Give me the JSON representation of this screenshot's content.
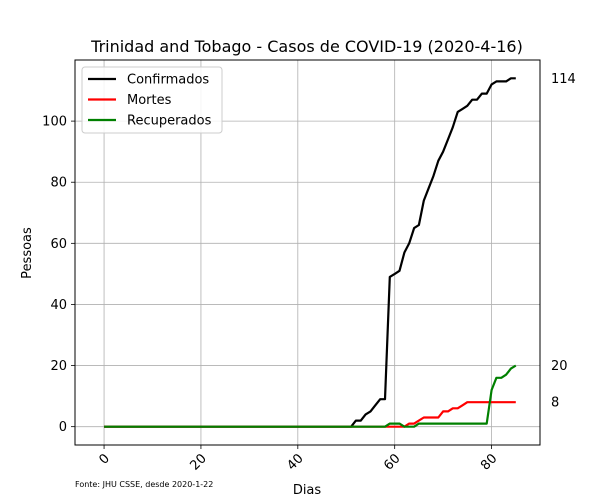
{
  "chart_data": {
    "type": "line",
    "title": "Trinidad and Tobago - Casos de COVID-19 (2020-4-16)",
    "xlabel": "Dias",
    "ylabel": "Pessoas",
    "xlim": [
      -6,
      90
    ],
    "ylim": [
      -6,
      120
    ],
    "xticks": [
      0,
      20,
      40,
      60,
      80
    ],
    "yticks": [
      0,
      20,
      40,
      60,
      80,
      100
    ],
    "grid": true,
    "legend_position": "top-left",
    "series": [
      {
        "name": "Confirmados",
        "color": "#000000",
        "end_label": "114",
        "points": [
          [
            0,
            0
          ],
          [
            51,
            0
          ],
          [
            52,
            2
          ],
          [
            53,
            2
          ],
          [
            54,
            4
          ],
          [
            55,
            5
          ],
          [
            56,
            7
          ],
          [
            57,
            9
          ],
          [
            58,
            9
          ],
          [
            59,
            49
          ],
          [
            60,
            50
          ],
          [
            61,
            51
          ],
          [
            62,
            57
          ],
          [
            63,
            60
          ],
          [
            64,
            65
          ],
          [
            65,
            66
          ],
          [
            66,
            74
          ],
          [
            67,
            78
          ],
          [
            68,
            82
          ],
          [
            69,
            87
          ],
          [
            70,
            90
          ],
          [
            71,
            94
          ],
          [
            72,
            98
          ],
          [
            73,
            103
          ],
          [
            74,
            104
          ],
          [
            75,
            105
          ],
          [
            76,
            107
          ],
          [
            77,
            107
          ],
          [
            78,
            109
          ],
          [
            79,
            109
          ],
          [
            80,
            112
          ],
          [
            81,
            113
          ],
          [
            82,
            113
          ],
          [
            83,
            113
          ],
          [
            84,
            114
          ],
          [
            85,
            114
          ]
        ]
      },
      {
        "name": "Mortes",
        "color": "#ff0000",
        "end_label": "8",
        "points": [
          [
            0,
            0
          ],
          [
            62,
            0
          ],
          [
            63,
            1
          ],
          [
            64,
            1
          ],
          [
            65,
            2
          ],
          [
            66,
            3
          ],
          [
            67,
            3
          ],
          [
            68,
            3
          ],
          [
            69,
            3
          ],
          [
            70,
            5
          ],
          [
            71,
            5
          ],
          [
            72,
            6
          ],
          [
            73,
            6
          ],
          [
            74,
            7
          ],
          [
            75,
            8
          ],
          [
            85,
            8
          ]
        ]
      },
      {
        "name": "Recuperados",
        "color": "#008000",
        "end_label": "20",
        "points": [
          [
            0,
            0
          ],
          [
            58,
            0
          ],
          [
            59,
            1
          ],
          [
            61,
            1
          ],
          [
            62,
            0
          ],
          [
            64,
            0
          ],
          [
            65,
            1
          ],
          [
            79,
            1
          ],
          [
            80,
            12
          ],
          [
            81,
            16
          ],
          [
            82,
            16
          ],
          [
            83,
            17
          ],
          [
            84,
            19
          ],
          [
            85,
            20
          ]
        ]
      }
    ],
    "source_note": "Fonte: JHU CSSE, desde 2020-1-22"
  }
}
